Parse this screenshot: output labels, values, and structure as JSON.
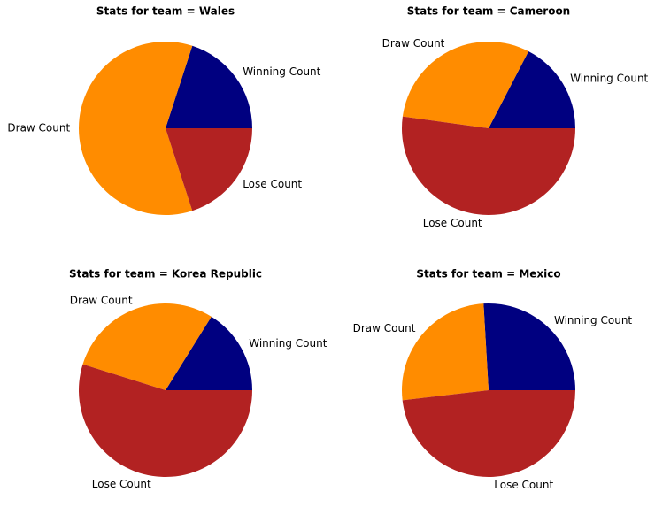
{
  "chart_data": [
    {
      "type": "pie",
      "title": "Stats for team = Wales",
      "categories": [
        "Winning Count",
        "Draw Count",
        "Lose Count"
      ],
      "values": [
        1,
        3,
        1
      ],
      "colors": [
        "#000080",
        "#ff8c00",
        "#b22222"
      ]
    },
    {
      "type": "pie",
      "title": "Stats for team = Cameroon",
      "categories": [
        "Winning Count",
        "Draw Count",
        "Lose Count"
      ],
      "values": [
        4,
        7,
        12
      ],
      "colors": [
        "#000080",
        "#ff8c00",
        "#b22222"
      ]
    },
    {
      "type": "pie",
      "title": "Stats for team = Korea Republic",
      "categories": [
        "Winning Count",
        "Draw Count",
        "Lose Count"
      ],
      "values": [
        5,
        9,
        17
      ],
      "colors": [
        "#000080",
        "#ff8c00",
        "#b22222"
      ]
    },
    {
      "type": "pie",
      "title": "Stats for team = Mexico",
      "categories": [
        "Winning Count",
        "Draw Count",
        "Lose Count"
      ],
      "values": [
        7,
        7,
        13
      ],
      "colors": [
        "#000080",
        "#ff8c00",
        "#b22222"
      ]
    }
  ]
}
